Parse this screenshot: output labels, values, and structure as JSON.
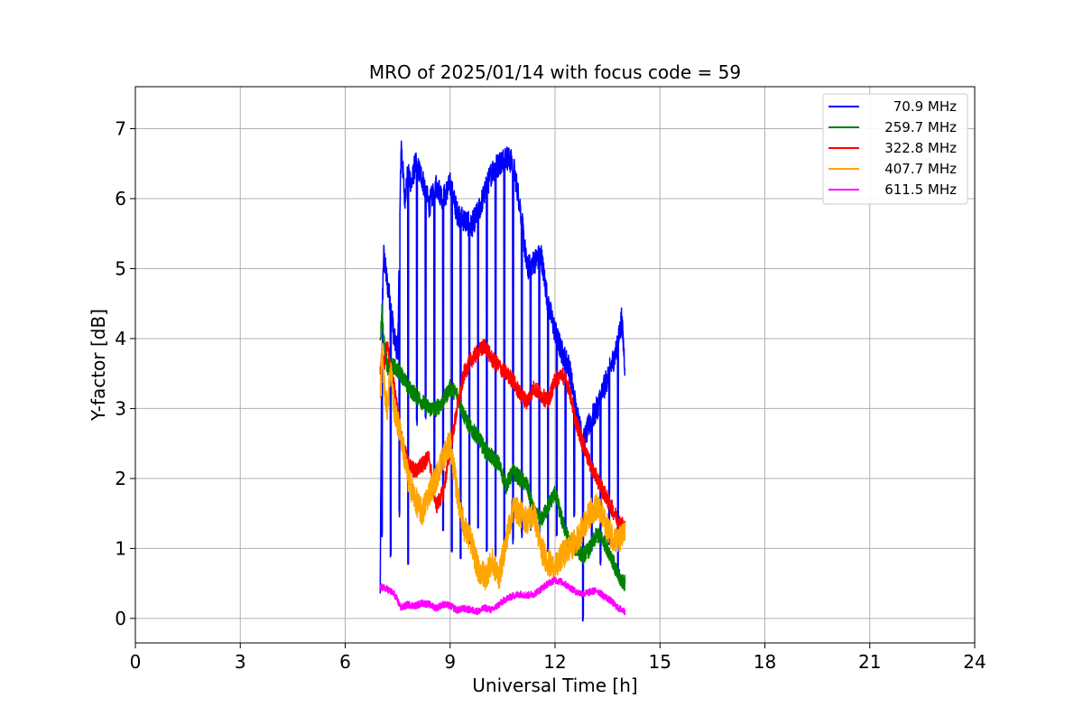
{
  "chart_data": {
    "type": "line",
    "title": "MRO of 2025/01/14 with focus code = 59",
    "xlabel": "Universal Time [h]",
    "ylabel": "Y-factor [dB]",
    "xlim": [
      0,
      24
    ],
    "ylim": [
      -0.35,
      7.6
    ],
    "xticks": [
      0,
      3,
      6,
      9,
      12,
      15,
      18,
      21,
      24
    ],
    "yticks": [
      0,
      1,
      2,
      3,
      4,
      5,
      6,
      7
    ],
    "grid": true,
    "legend_position": "top-right",
    "series": [
      {
        "name": " 70.9 MHz",
        "color": "#0000ff",
        "x": [
          7.0,
          7.05,
          7.1,
          7.2,
          7.3,
          7.4,
          7.5,
          7.6,
          7.7,
          7.8,
          7.9,
          8.0,
          8.2,
          8.4,
          8.6,
          8.8,
          9.0,
          9.2,
          9.4,
          9.6,
          9.8,
          10.0,
          10.2,
          10.4,
          10.6,
          10.8,
          11.0,
          11.2,
          11.4,
          11.6,
          11.8,
          12.0,
          12.2,
          12.4,
          12.6,
          12.8,
          13.0,
          13.2,
          13.4,
          13.6,
          13.8,
          13.9,
          14.0
        ],
        "y": [
          0.3,
          4.2,
          5.2,
          4.8,
          4.5,
          4.0,
          3.8,
          6.8,
          6.0,
          6.4,
          6.2,
          6.5,
          6.3,
          5.9,
          6.2,
          6.0,
          6.2,
          5.8,
          5.7,
          5.6,
          5.8,
          6.1,
          6.4,
          6.5,
          6.6,
          6.5,
          5.9,
          5.0,
          5.1,
          5.2,
          4.5,
          4.1,
          3.8,
          3.6,
          3.0,
          2.5,
          2.8,
          3.0,
          3.3,
          3.6,
          3.9,
          4.3,
          3.6
        ],
        "dips": [
          7.05,
          7.3,
          7.55,
          7.8,
          8.05,
          8.3,
          8.55,
          8.8,
          9.05,
          9.3,
          9.55,
          9.8,
          10.05,
          10.3,
          10.55,
          10.8,
          11.05,
          11.3,
          11.55,
          11.8,
          12.05,
          12.3,
          12.55,
          12.8,
          13.05,
          13.3,
          13.55,
          13.8
        ],
        "dip_min": [
          1.2,
          0.9,
          1.5,
          0.8,
          2.8,
          2.9,
          2.0,
          1.3,
          1.0,
          0.9,
          1.1,
          1.3,
          1.0,
          0.9,
          1.0,
          1.1,
          1.2,
          1.3,
          1.1,
          1.0,
          1.2,
          1.3,
          1.5,
          0.0,
          1.0,
          0.8,
          1.1,
          0.6
        ]
      },
      {
        "name": "259.7 MHz",
        "color": "#008000",
        "x": [
          7.0,
          7.05,
          7.1,
          7.2,
          7.4,
          7.6,
          7.8,
          8.0,
          8.2,
          8.4,
          8.6,
          8.8,
          9.0,
          9.2,
          9.4,
          9.6,
          9.8,
          10.0,
          10.2,
          10.4,
          10.6,
          10.8,
          11.0,
          11.2,
          11.4,
          11.6,
          11.8,
          12.0,
          12.2,
          12.4,
          12.6,
          12.8,
          13.0,
          13.2,
          13.4,
          13.6,
          13.8,
          14.0
        ],
        "y": [
          3.9,
          4.4,
          4.0,
          3.6,
          3.6,
          3.5,
          3.3,
          3.2,
          3.1,
          3.0,
          3.0,
          3.1,
          3.3,
          3.2,
          2.9,
          2.7,
          2.6,
          2.4,
          2.3,
          2.2,
          1.9,
          2.1,
          2.0,
          1.9,
          1.5,
          1.4,
          1.6,
          1.8,
          1.4,
          1.1,
          1.0,
          0.9,
          1.0,
          1.2,
          1.1,
          0.9,
          0.6,
          0.5
        ]
      },
      {
        "name": "322.8 MHz",
        "color": "#ff0000",
        "x": [
          7.0,
          7.05,
          7.1,
          7.2,
          7.4,
          7.6,
          7.8,
          8.0,
          8.2,
          8.4,
          8.6,
          8.8,
          9.0,
          9.2,
          9.4,
          9.6,
          9.8,
          10.0,
          10.2,
          10.4,
          10.6,
          10.8,
          11.0,
          11.2,
          11.4,
          11.6,
          11.8,
          12.0,
          12.2,
          12.4,
          12.6,
          12.8,
          13.0,
          13.2,
          13.4,
          13.6,
          13.8,
          14.0
        ],
        "y": [
          3.5,
          3.8,
          3.6,
          3.9,
          3.3,
          2.6,
          2.2,
          2.1,
          2.2,
          2.3,
          1.6,
          1.8,
          2.4,
          3.0,
          3.5,
          3.7,
          3.8,
          3.9,
          3.7,
          3.6,
          3.5,
          3.4,
          3.2,
          3.1,
          3.3,
          3.2,
          3.1,
          3.4,
          3.5,
          3.3,
          2.8,
          2.5,
          2.2,
          2.0,
          1.8,
          1.6,
          1.4,
          1.3
        ]
      },
      {
        "name": "407.7 MHz",
        "color": "#ffa500",
        "x": [
          7.0,
          7.05,
          7.1,
          7.2,
          7.3,
          7.4,
          7.6,
          7.8,
          8.0,
          8.2,
          8.4,
          8.6,
          8.8,
          9.0,
          9.2,
          9.4,
          9.6,
          9.8,
          10.0,
          10.2,
          10.4,
          10.6,
          10.8,
          11.0,
          11.2,
          11.4,
          11.6,
          11.8,
          12.0,
          12.2,
          12.4,
          12.6,
          12.8,
          13.0,
          13.2,
          13.4,
          13.6,
          13.8,
          14.0
        ],
        "y": [
          3.3,
          3.8,
          3.4,
          3.0,
          3.6,
          3.0,
          2.6,
          2.0,
          1.7,
          1.5,
          1.8,
          2.0,
          2.3,
          2.5,
          1.8,
          1.3,
          1.1,
          0.7,
          0.6,
          0.8,
          0.6,
          1.1,
          1.6,
          1.5,
          1.4,
          1.5,
          1.0,
          0.8,
          0.7,
          0.9,
          1.0,
          1.1,
          1.3,
          1.5,
          1.6,
          1.4,
          1.2,
          1.1,
          1.2
        ]
      },
      {
        "name": "611.5 MHz",
        "color": "#ff00ff",
        "x": [
          7.0,
          7.2,
          7.4,
          7.6,
          7.8,
          8.0,
          8.2,
          8.4,
          8.6,
          8.8,
          9.0,
          9.2,
          9.4,
          9.6,
          9.8,
          10.0,
          10.2,
          10.4,
          10.6,
          10.8,
          11.0,
          11.2,
          11.4,
          11.6,
          11.8,
          12.0,
          12.2,
          12.4,
          12.6,
          12.8,
          13.0,
          13.2,
          13.4,
          13.6,
          13.8,
          14.0
        ],
        "y": [
          0.45,
          0.42,
          0.35,
          0.15,
          0.2,
          0.18,
          0.22,
          0.2,
          0.15,
          0.2,
          0.18,
          0.12,
          0.14,
          0.12,
          0.1,
          0.15,
          0.12,
          0.2,
          0.28,
          0.32,
          0.35,
          0.33,
          0.35,
          0.42,
          0.5,
          0.55,
          0.52,
          0.45,
          0.38,
          0.35,
          0.38,
          0.4,
          0.32,
          0.25,
          0.15,
          0.1
        ]
      }
    ]
  }
}
